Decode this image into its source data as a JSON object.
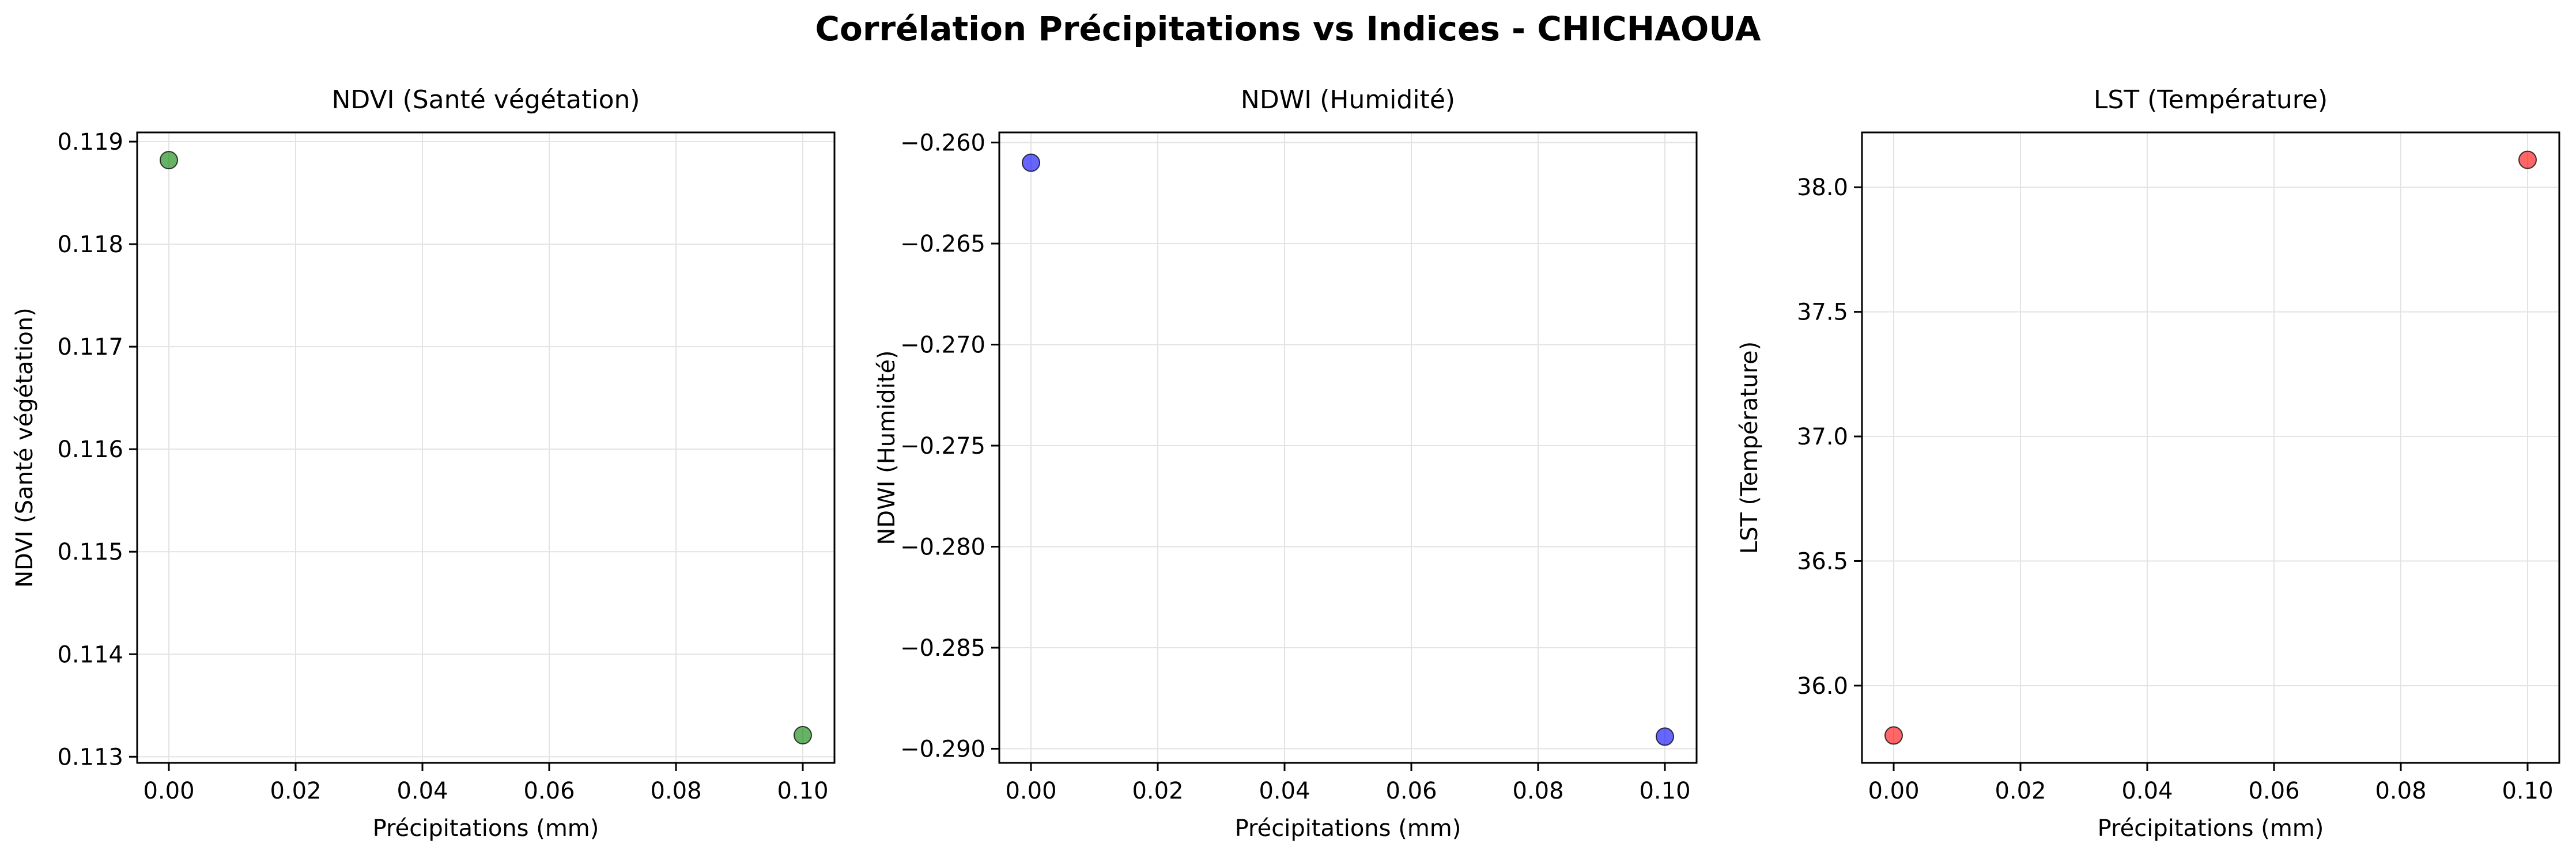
{
  "figure": {
    "title": "Corrélation Précipitations vs Indices - CHICHAOUA"
  },
  "chart_data": [
    {
      "type": "scatter",
      "title": "NDVI (Santé végétation)",
      "xlabel": "Précipitations (mm)",
      "ylabel": "NDVI (Santé végétation)",
      "xlim": [
        -0.005,
        0.105
      ],
      "ylim": [
        0.11294,
        0.11909
      ],
      "xticks": [
        0.0,
        0.02,
        0.04,
        0.06,
        0.08,
        0.1
      ],
      "xtick_labels": [
        "0.00",
        "0.02",
        "0.04",
        "0.06",
        "0.08",
        "0.10"
      ],
      "yticks": [
        0.113,
        0.114,
        0.115,
        0.116,
        0.117,
        0.118,
        0.119
      ],
      "ytick_labels": [
        "0.113",
        "0.114",
        "0.115",
        "0.116",
        "0.117",
        "0.118",
        "0.119"
      ],
      "grid": true,
      "color": "#008000",
      "points": [
        {
          "x": 0.0,
          "y": 0.11882
        },
        {
          "x": 0.1,
          "y": 0.11321
        }
      ]
    },
    {
      "type": "scatter",
      "title": "NDWI (Humidité)",
      "xlabel": "Précipitations (mm)",
      "ylabel": "NDWI (Humidité)",
      "xlim": [
        -0.005,
        0.105
      ],
      "ylim": [
        -0.2907,
        -0.2595
      ],
      "xticks": [
        0.0,
        0.02,
        0.04,
        0.06,
        0.08,
        0.1
      ],
      "xtick_labels": [
        "0.00",
        "0.02",
        "0.04",
        "0.06",
        "0.08",
        "0.10"
      ],
      "yticks": [
        -0.29,
        -0.285,
        -0.28,
        -0.275,
        -0.27,
        -0.265,
        -0.26
      ],
      "ytick_labels": [
        "−0.290",
        "−0.285",
        "−0.280",
        "−0.275",
        "−0.270",
        "−0.265",
        "−0.260"
      ],
      "grid": true,
      "color": "#0000ff",
      "points": [
        {
          "x": 0.0,
          "y": -0.261
        },
        {
          "x": 0.1,
          "y": -0.2894
        }
      ]
    },
    {
      "type": "scatter",
      "title": "LST (Température)",
      "xlabel": "Précipitations (mm)",
      "ylabel": "LST (Température)",
      "xlim": [
        -0.005,
        0.105
      ],
      "ylim": [
        35.69,
        38.22
      ],
      "xticks": [
        0.0,
        0.02,
        0.04,
        0.06,
        0.08,
        0.1
      ],
      "xtick_labels": [
        "0.00",
        "0.02",
        "0.04",
        "0.06",
        "0.08",
        "0.10"
      ],
      "yticks": [
        36.0,
        36.5,
        37.0,
        37.5,
        38.0
      ],
      "ytick_labels": [
        "36.0",
        "36.5",
        "37.0",
        "37.5",
        "38.0"
      ],
      "grid": true,
      "color": "#ff0000",
      "points": [
        {
          "x": 0.0,
          "y": 35.8
        },
        {
          "x": 0.1,
          "y": 38.11
        }
      ]
    }
  ]
}
